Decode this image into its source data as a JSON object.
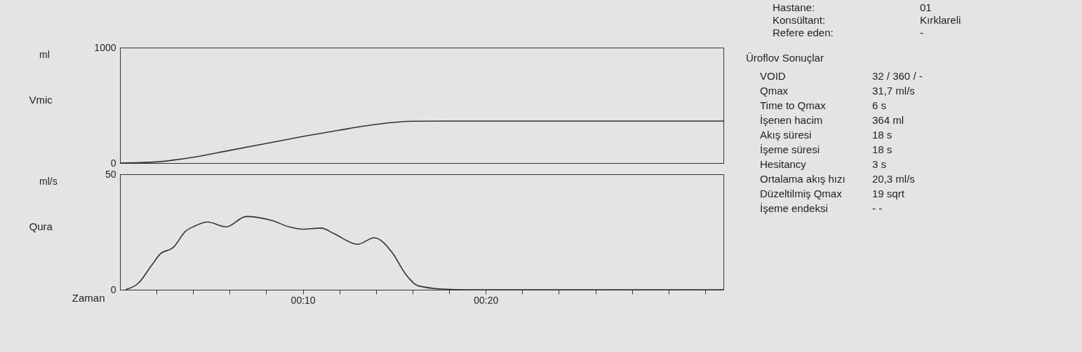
{
  "chart_data": [
    {
      "type": "other",
      "annotations": [
        "Hastane:",
        "01",
        "Konsültant:",
        "Kırklareli",
        "Refere eden:",
        "-"
      ]
    },
    {
      "type": "line",
      "ylabel": "Vmic",
      "annotations": [
        "ml"
      ],
      "x": [
        0,
        2,
        4,
        6,
        8,
        10,
        12,
        14,
        16,
        18,
        20,
        22,
        24,
        26,
        28,
        30,
        32,
        33
      ],
      "series": [
        {
          "color": "#333333",
          "values": [
            0,
            10,
            50,
            110,
            170,
            230,
            285,
            335,
            362,
            364,
            364,
            364,
            364,
            364,
            364,
            364,
            364,
            364
          ]
        }
      ],
      "xlim": [
        0,
        33
      ],
      "ylim": [
        0,
        1000
      ],
      "yticks": [
        0,
        1000
      ],
      "tick_labels": "y",
      "grid": false
    },
    {
      "type": "line",
      "ylabel": "Qura",
      "xlabel": "Zaman",
      "annotations": [
        "ml/s"
      ],
      "x": [
        0.3,
        1,
        1.7,
        2.2,
        2.9,
        3.6,
        4.1,
        4.8,
        5.8,
        6.9,
        8.3,
        9.3,
        10,
        11,
        11.7,
        13,
        13.9,
        14.9,
        15.6,
        16.3,
        17.6,
        19,
        33
      ],
      "series": [
        {
          "color": "#333333",
          "values": [
            0,
            2.8,
            10.2,
            15.5,
            18.2,
            25.4,
            27.6,
            29.3,
            27.2,
            31.7,
            30,
            27.1,
            26.2,
            26.7,
            24.3,
            19.7,
            22.5,
            15.9,
            7,
            1.7,
            0.3,
            0,
            0
          ]
        }
      ],
      "xlim": [
        0,
        33
      ],
      "xticks": [
        {
          "value": 2,
          "label": null
        },
        {
          "value": 4,
          "label": null
        },
        {
          "value": 6,
          "label": null
        },
        {
          "value": 8,
          "label": null
        },
        {
          "value": 10,
          "label": "00:10"
        },
        {
          "value": 12,
          "label": null
        },
        {
          "value": 14,
          "label": null
        },
        {
          "value": 16,
          "label": null
        },
        {
          "value": 18,
          "label": null
        },
        {
          "value": 20,
          "label": "00:20"
        },
        {
          "value": 22,
          "label": null
        },
        {
          "value": 24,
          "label": null
        },
        {
          "value": 26,
          "label": null
        },
        {
          "value": 28,
          "label": null
        },
        {
          "value": 30,
          "label": null
        },
        {
          "value": 32,
          "label": null
        }
      ],
      "ylim": [
        0,
        50
      ],
      "yticks": [
        0,
        50
      ],
      "grid": false
    },
    {
      "type": "other",
      "title": "Üroflov Sonuçlar",
      "annotations": [
        "VOID",
        "32 / 360 / -",
        "Qmax",
        "31,7  ml/s",
        "Time to Qmax",
        "6  s",
        "İşenen hacim",
        "364  ml",
        "Akış süresi",
        "18  s",
        "İşeme süresi",
        "18  s",
        "Hesitancy",
        "3  s",
        "Ortalama akış hızı",
        "20,3  ml/s",
        "Düzeltilmiş Qmax",
        "19  sqrt",
        "İşeme endeksi",
        "- -"
      ]
    }
  ]
}
